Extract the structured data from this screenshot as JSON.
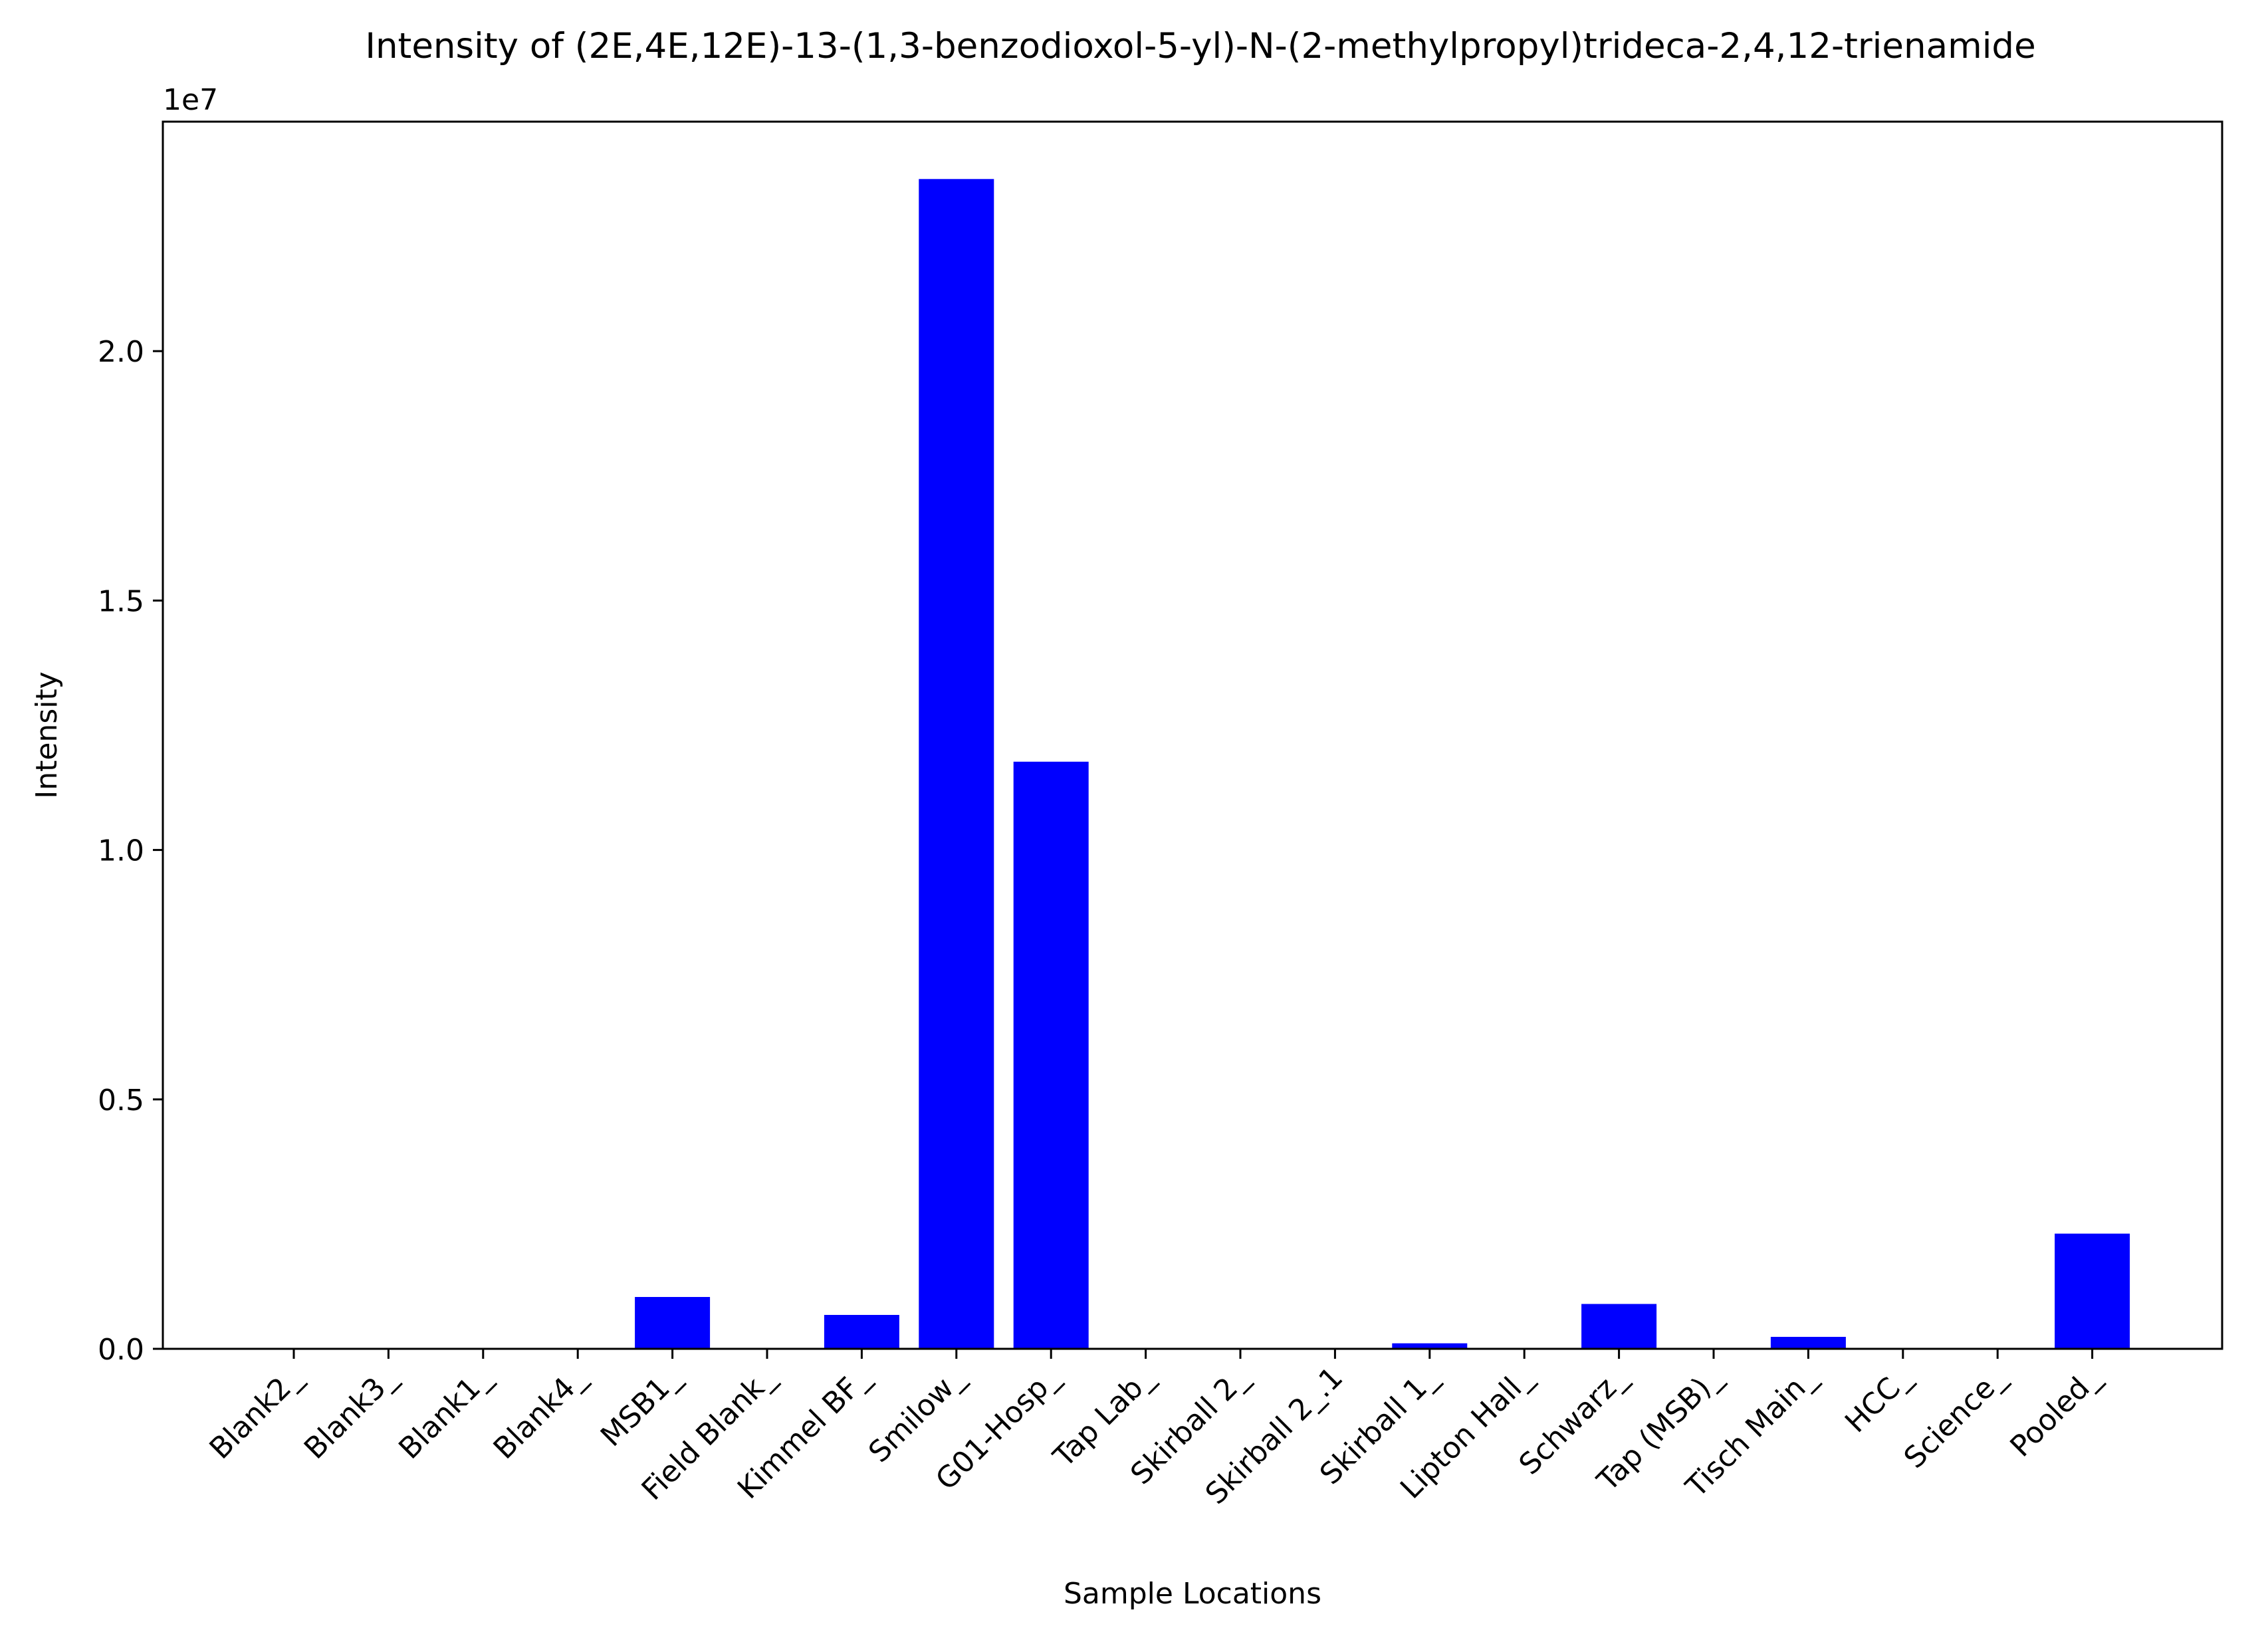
{
  "chart_data": {
    "type": "bar",
    "title": "Intensity of (2E,4E,12E)-13-(1,3-benzodioxol-5-yl)-N-(2-methylpropyl)trideca-2,4,12-trienamide",
    "xlabel": "Sample Locations",
    "ylabel": "Intensity",
    "y_offset_label": "1e7",
    "categories": [
      "Blank2_",
      "Blank3_",
      "Blank1_",
      "Blank4_",
      "MSB1_",
      "Field Blank_",
      "Kimmel BF_",
      "Smilow_",
      "G01-Hosp_",
      "Tap Lab_",
      "Skirball 2_",
      "Skirball 2_.1",
      "Skirball 1_",
      "Lipton Hall_",
      "Schwarz_",
      "Tap (MSB)_",
      "Tisch Main_",
      "HCC_",
      "Science_",
      "Pooled_"
    ],
    "values": [
      0,
      0,
      0,
      0,
      1040000,
      0,
      680000,
      23450000,
      11770000,
      0,
      0,
      0,
      110000,
      0,
      900000,
      0,
      240000,
      0,
      0,
      2310000
    ],
    "ylim": [
      0,
      24600000
    ],
    "yticks": [
      0,
      5000000,
      10000000,
      15000000,
      20000000
    ],
    "ytick_labels": [
      "0.0",
      "0.5",
      "1.0",
      "1.5",
      "2.0"
    ],
    "bar_color": "#0000ff",
    "grid": false,
    "legend": "none"
  }
}
